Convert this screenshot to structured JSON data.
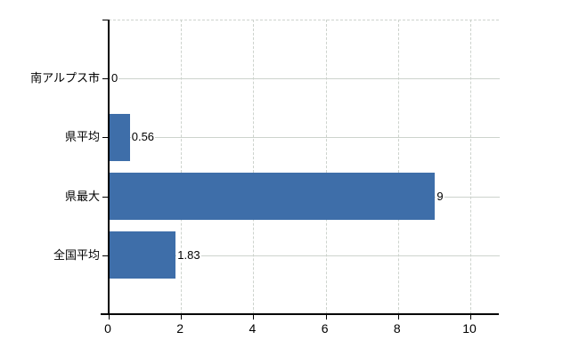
{
  "chart_data": {
    "type": "bar",
    "orientation": "horizontal",
    "title": "",
    "xlabel": "",
    "ylabel": "",
    "categories": [
      "南アルプス市",
      "県平均",
      "県最大",
      "全国平均"
    ],
    "values": [
      0,
      0.56,
      9,
      1.83
    ],
    "value_labels": [
      "0",
      "0.56",
      "9",
      "1.83"
    ],
    "x_tick_labels": [
      "0",
      "2",
      "4",
      "6",
      "8",
      "10"
    ],
    "x_tick_values": [
      0,
      2,
      4,
      6,
      8,
      10
    ],
    "xlim": [
      0,
      10.8
    ],
    "grid": "on",
    "legend": "none",
    "colors": {
      "bar": "#3e6ea9",
      "grid": "#cdd3cd",
      "axis": "#000000",
      "text": "#000000",
      "background": "#ffffff"
    }
  }
}
